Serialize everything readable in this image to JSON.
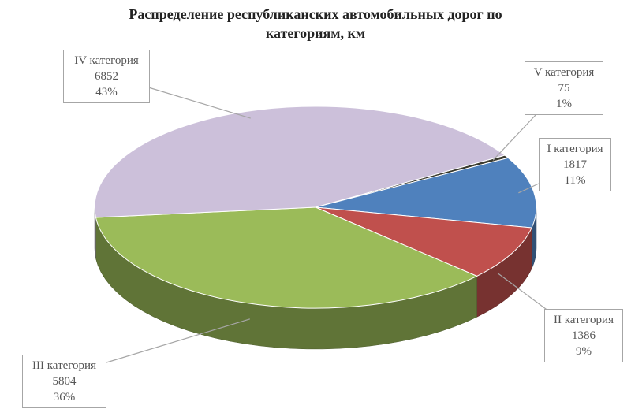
{
  "chart_data": {
    "type": "pie3d",
    "title": "Распределение республиканских автомобильных дорог по категориям, км",
    "categories": [
      "V категория",
      "I категория",
      "II категория",
      "III категория",
      "IV категория"
    ],
    "values": [
      75,
      1817,
      1386,
      5804,
      6852
    ],
    "percent_labels": [
      "1%",
      "11%",
      "9%",
      "36%",
      "43%"
    ],
    "colors": [
      "#3a3a2e",
      "#4f81bd",
      "#c0504d",
      "#9bbb59",
      "#ccc0da"
    ]
  }
}
